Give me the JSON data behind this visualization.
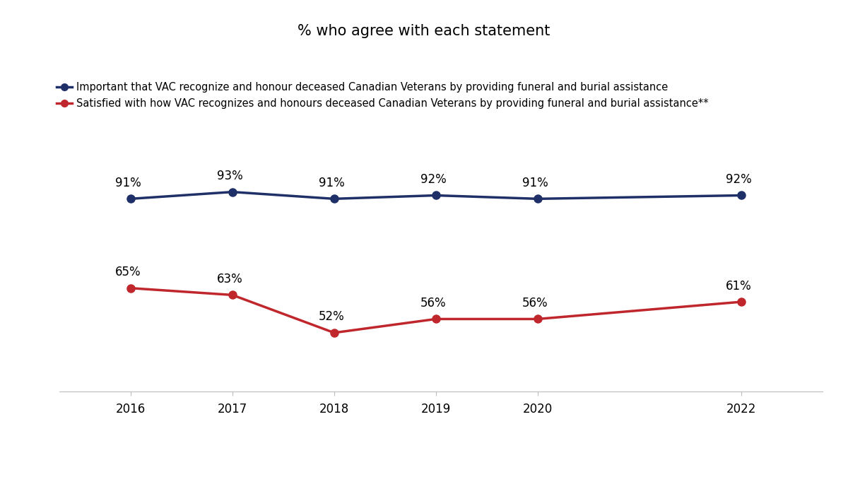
{
  "title": "% who agree with each statement",
  "years": [
    2016,
    2017,
    2018,
    2019,
    2020,
    2022
  ],
  "series1": {
    "label": "Important that VAC recognize and honour deceased Canadian Veterans by providing funeral and burial assistance",
    "values": [
      91,
      93,
      91,
      92,
      91,
      92
    ],
    "color": "#1f3068",
    "marker": "o"
  },
  "series2": {
    "label": "Satisfied with how VAC recognizes and honours deceased Canadian Veterans by providing funeral and burial assistance**",
    "values": [
      65,
      63,
      52,
      56,
      56,
      61
    ],
    "color": "#c0272d",
    "marker": "o"
  },
  "background_color": "#ffffff",
  "title_fontsize": 15,
  "label_fontsize": 10.5,
  "tick_fontsize": 12,
  "annotation_fontsize": 12
}
